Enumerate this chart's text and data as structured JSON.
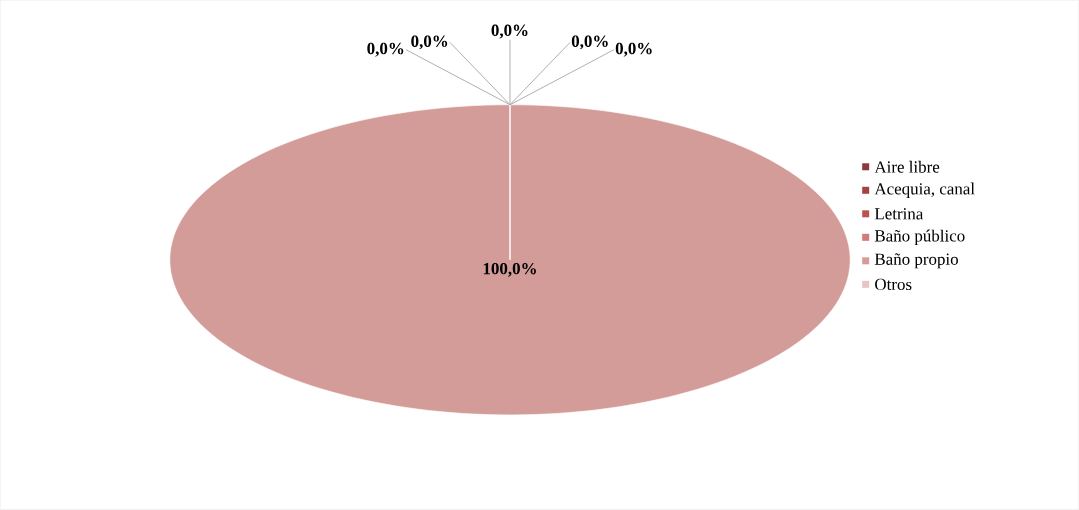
{
  "chart_data": {
    "type": "pie",
    "categories": [
      "Aire libre",
      "Acequia, canal",
      "Letrina",
      "Baño público",
      "Baño propio",
      "Otros"
    ],
    "values": [
      0,
      0,
      0,
      0,
      100,
      0
    ],
    "colors": [
      "#8b3a3a",
      "#a34343",
      "#c0504d",
      "#d47a78",
      "#d39c99",
      "#e8c4c3"
    ],
    "value_labels": [
      "0,0%",
      "0,0%",
      "0,0%",
      "0,0%",
      "100,0%",
      "0,0%"
    ],
    "legend": "right"
  }
}
